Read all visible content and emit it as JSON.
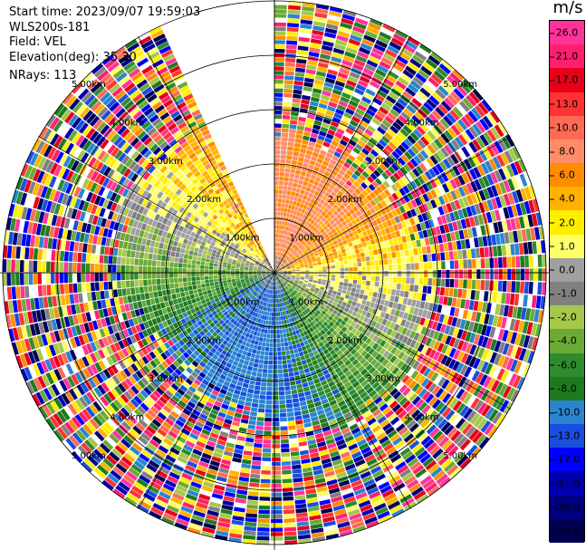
{
  "header": {
    "start_time": "Start time: 2023/09/07 19:59:03",
    "instrument": "WLS200s-181",
    "field": "Field: VEL",
    "elevation": "Elevation(deg): 35.30",
    "nrays": "NRays: 113"
  },
  "colorbar": {
    "unit": "m/s",
    "ticks": [
      "26.0",
      "21.0",
      "17.0",
      "13.0",
      "10.0",
      "8.0",
      "6.0",
      "4.0",
      "2.0",
      "1.0",
      "0.0",
      "-1.0",
      "-2.0",
      "-4.0",
      "-6.0",
      "-8.0",
      "-10.0",
      "-13.0",
      "-17.0",
      "-21.0",
      "-26.0",
      "-30.0"
    ],
    "colors": [
      "#ff3399",
      "#ff1f6e",
      "#e6001a",
      "#ff3333",
      "#ff6a55",
      "#ff8c66",
      "#ff8c00",
      "#ffb300",
      "#ffee00",
      "#ffff66",
      "#a0a0a0",
      "#808080",
      "#a5c84a",
      "#6aaa35",
      "#2e8b2e",
      "#1e7a1e",
      "#2a84d0",
      "#1a4ee0",
      "#0000ff",
      "#0000b0",
      "#000080",
      "#000050"
    ]
  },
  "range_rings": {
    "labels": [
      "1.00km",
      "2.00km",
      "3.00km",
      "4.00km",
      "5.00km"
    ]
  }
}
